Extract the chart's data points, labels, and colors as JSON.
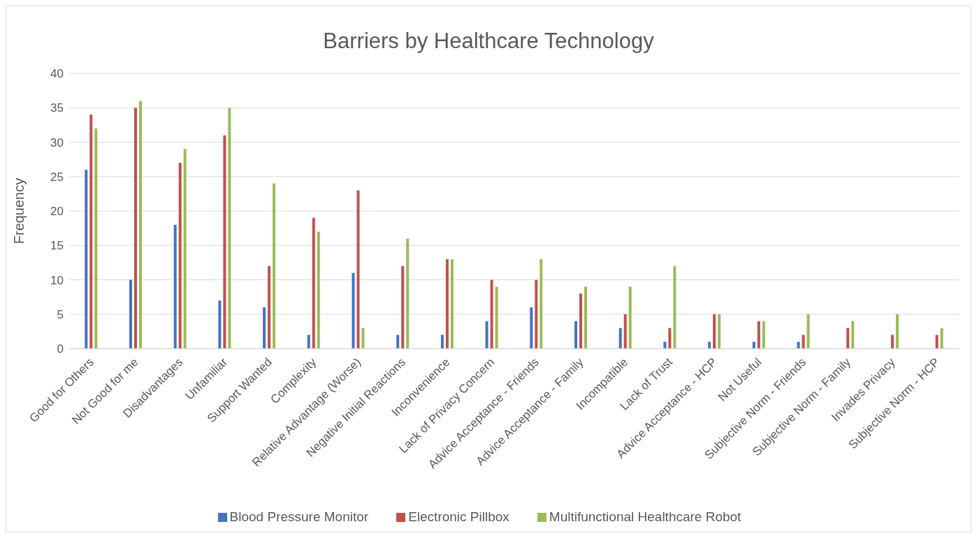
{
  "chart_data": {
    "type": "bar",
    "title": "Barriers by Healthcare Technology",
    "ylabel": "Frequency",
    "categories": [
      "Good for Others",
      "Not Good for me",
      "Disadvantages",
      "Unfamiliar",
      "Support Wanted",
      "Complexity",
      "Relative Advantage (Worse)",
      "Negative Initial Reactions",
      "Inconvenience",
      "Lack of Privacy Concern",
      "Advice Acceptance - Friends",
      "Advice Acceptance - Family",
      "Incompatible",
      "Lack of Trust",
      "Advice Acceptance - HCP",
      "Not Useful",
      "Subjective Norm - Friends",
      "Subjective Norm - Family",
      "Invades Privacy",
      "Subjective Norm - HCP"
    ],
    "series": [
      {
        "name": "Blood Pressure Monitor",
        "color": "#4472c4",
        "values": [
          26,
          10,
          18,
          7,
          6,
          2,
          11,
          2,
          2,
          4,
          6,
          4,
          3,
          1,
          1,
          1,
          1,
          0,
          0,
          0
        ]
      },
      {
        "name": "Electronic Pillbox",
        "color": "#c0504d",
        "values": [
          34,
          35,
          27,
          31,
          12,
          19,
          23,
          12,
          13,
          10,
          10,
          8,
          5,
          3,
          5,
          4,
          2,
          3,
          2,
          2
        ]
      },
      {
        "name": "Multifunctional Healthcare Robot",
        "color": "#9bbb59",
        "values": [
          32,
          36,
          29,
          35,
          24,
          17,
          3,
          16,
          13,
          9,
          13,
          9,
          9,
          12,
          5,
          4,
          5,
          4,
          5,
          3
        ]
      }
    ],
    "ylim": [
      0,
      40
    ],
    "yticks": [
      0,
      5,
      10,
      15,
      20,
      25,
      30,
      35,
      40
    ],
    "grid": "y",
    "legend": "bottom"
  }
}
